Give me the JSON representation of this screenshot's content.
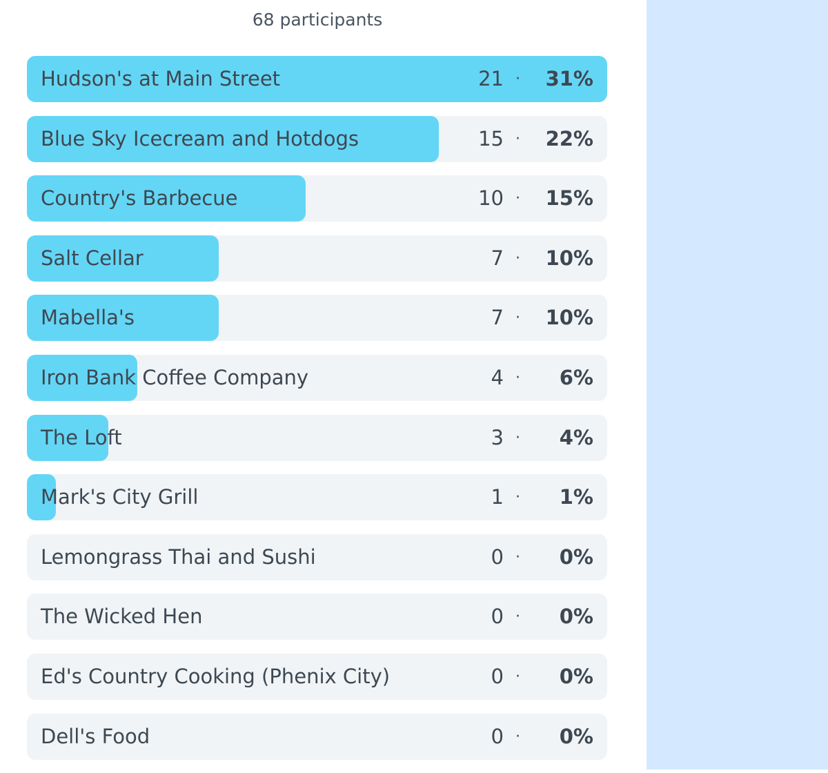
{
  "poll": {
    "participants_label": "68 participants",
    "accent_color": "#64d6f5",
    "track_color": "#f1f4f6",
    "separator": "·",
    "options": [
      {
        "label": "Hudson's at Main Street",
        "count": "21",
        "percent": "31%",
        "share": 1.0
      },
      {
        "label": "Blue Sky Icecream and Hotdogs",
        "count": "15",
        "percent": "22%",
        "share": 0.71
      },
      {
        "label": "Country's Barbecue",
        "count": "10",
        "percent": "15%",
        "share": 0.48
      },
      {
        "label": "Salt Cellar",
        "count": "7",
        "percent": "10%",
        "share": 0.33
      },
      {
        "label": "Mabella's",
        "count": "7",
        "percent": "10%",
        "share": 0.33
      },
      {
        "label": "Iron Bank Coffee Company",
        "count": "4",
        "percent": "6%",
        "share": 0.19
      },
      {
        "label": "The Loft",
        "count": "3",
        "percent": "4%",
        "share": 0.14
      },
      {
        "label": "Mark's City Grill",
        "count": "1",
        "percent": "1%",
        "share": 0.05
      },
      {
        "label": "Lemongrass Thai and Sushi",
        "count": "0",
        "percent": "0%",
        "share": 0
      },
      {
        "label": "The Wicked Hen",
        "count": "0",
        "percent": "0%",
        "share": 0
      },
      {
        "label": "Ed's Country Cooking (Phenix City)",
        "count": "0",
        "percent": "0%",
        "share": 0
      },
      {
        "label": "Dell's Food",
        "count": "0",
        "percent": "0%",
        "share": 0
      }
    ]
  }
}
